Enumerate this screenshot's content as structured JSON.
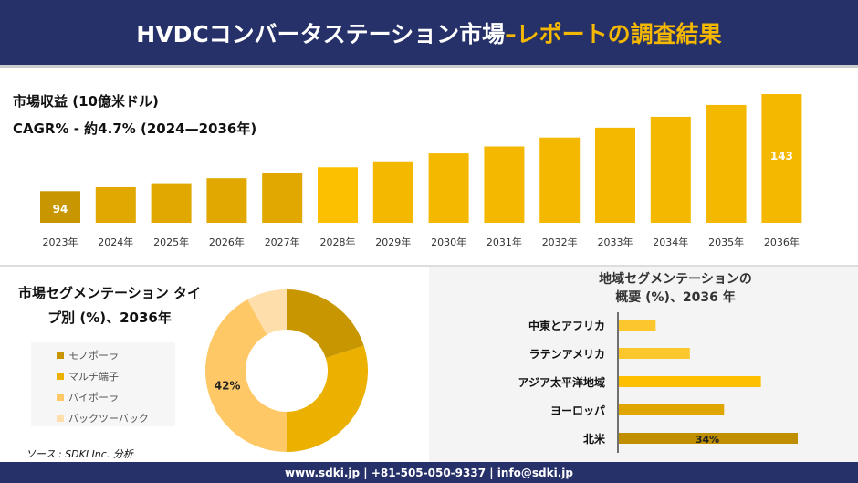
{
  "header": {
    "title_main": "HVDCコンバータステーション市場",
    "title_accent": "–レポートの調査結果"
  },
  "colors": {
    "header_bg": "#263069",
    "accent": "#f5b800"
  },
  "chart_data": [
    {
      "type": "bar",
      "title": "市場収益 (10億米ドル)",
      "subtitle": "CAGR% - 約4.7% (2024—2036年)",
      "categories": [
        "2023年",
        "2024年",
        "2025年",
        "2026年",
        "2027年",
        "2028年",
        "2029年",
        "2030年",
        "2031年",
        "2032年",
        "2033年",
        "2034年",
        "2035年",
        "2036年"
      ],
      "values": [
        94,
        96,
        98,
        100.5,
        103,
        106,
        109,
        113,
        116.5,
        121,
        126,
        131.5,
        137.5,
        143
      ],
      "data_labels": {
        "0": "94",
        "13": "143"
      },
      "ylim": [
        78,
        143
      ],
      "grid": false
    },
    {
      "type": "pie",
      "title": "市場セグメンテーション タイプ別 (%)、2036年",
      "labels": [
        "モノポーラ",
        "マルチ端子",
        "バイポーラ",
        "バックツーバック"
      ],
      "values": [
        20,
        30,
        42,
        8
      ],
      "colors": [
        "#c89600",
        "#ebb000",
        "#fdc865",
        "#fedfac"
      ],
      "data_labels": {
        "2": "42%"
      },
      "legend": "left"
    },
    {
      "type": "bar",
      "orientation": "horizontal",
      "title_line1": "地域セグメンテーションの",
      "title_line2": "概要 (%)、2036 年",
      "categories": [
        "中東とアフリカ",
        "ラテンアメリカ",
        "アジア太平洋地域",
        "ヨーロッパ",
        "北米"
      ],
      "values": [
        7,
        13.5,
        27,
        20,
        34
      ],
      "colors": [
        "#fcc62d",
        "#fcc62d",
        "#fdbf00",
        "#dfa600",
        "#c08f00"
      ],
      "data_labels": {
        "4": "34%"
      }
    }
  ],
  "source": "ソース : SDKI Inc. 分析",
  "footer": "www.sdki.jp | +81-505-050-9337 | info@sdki.jp"
}
